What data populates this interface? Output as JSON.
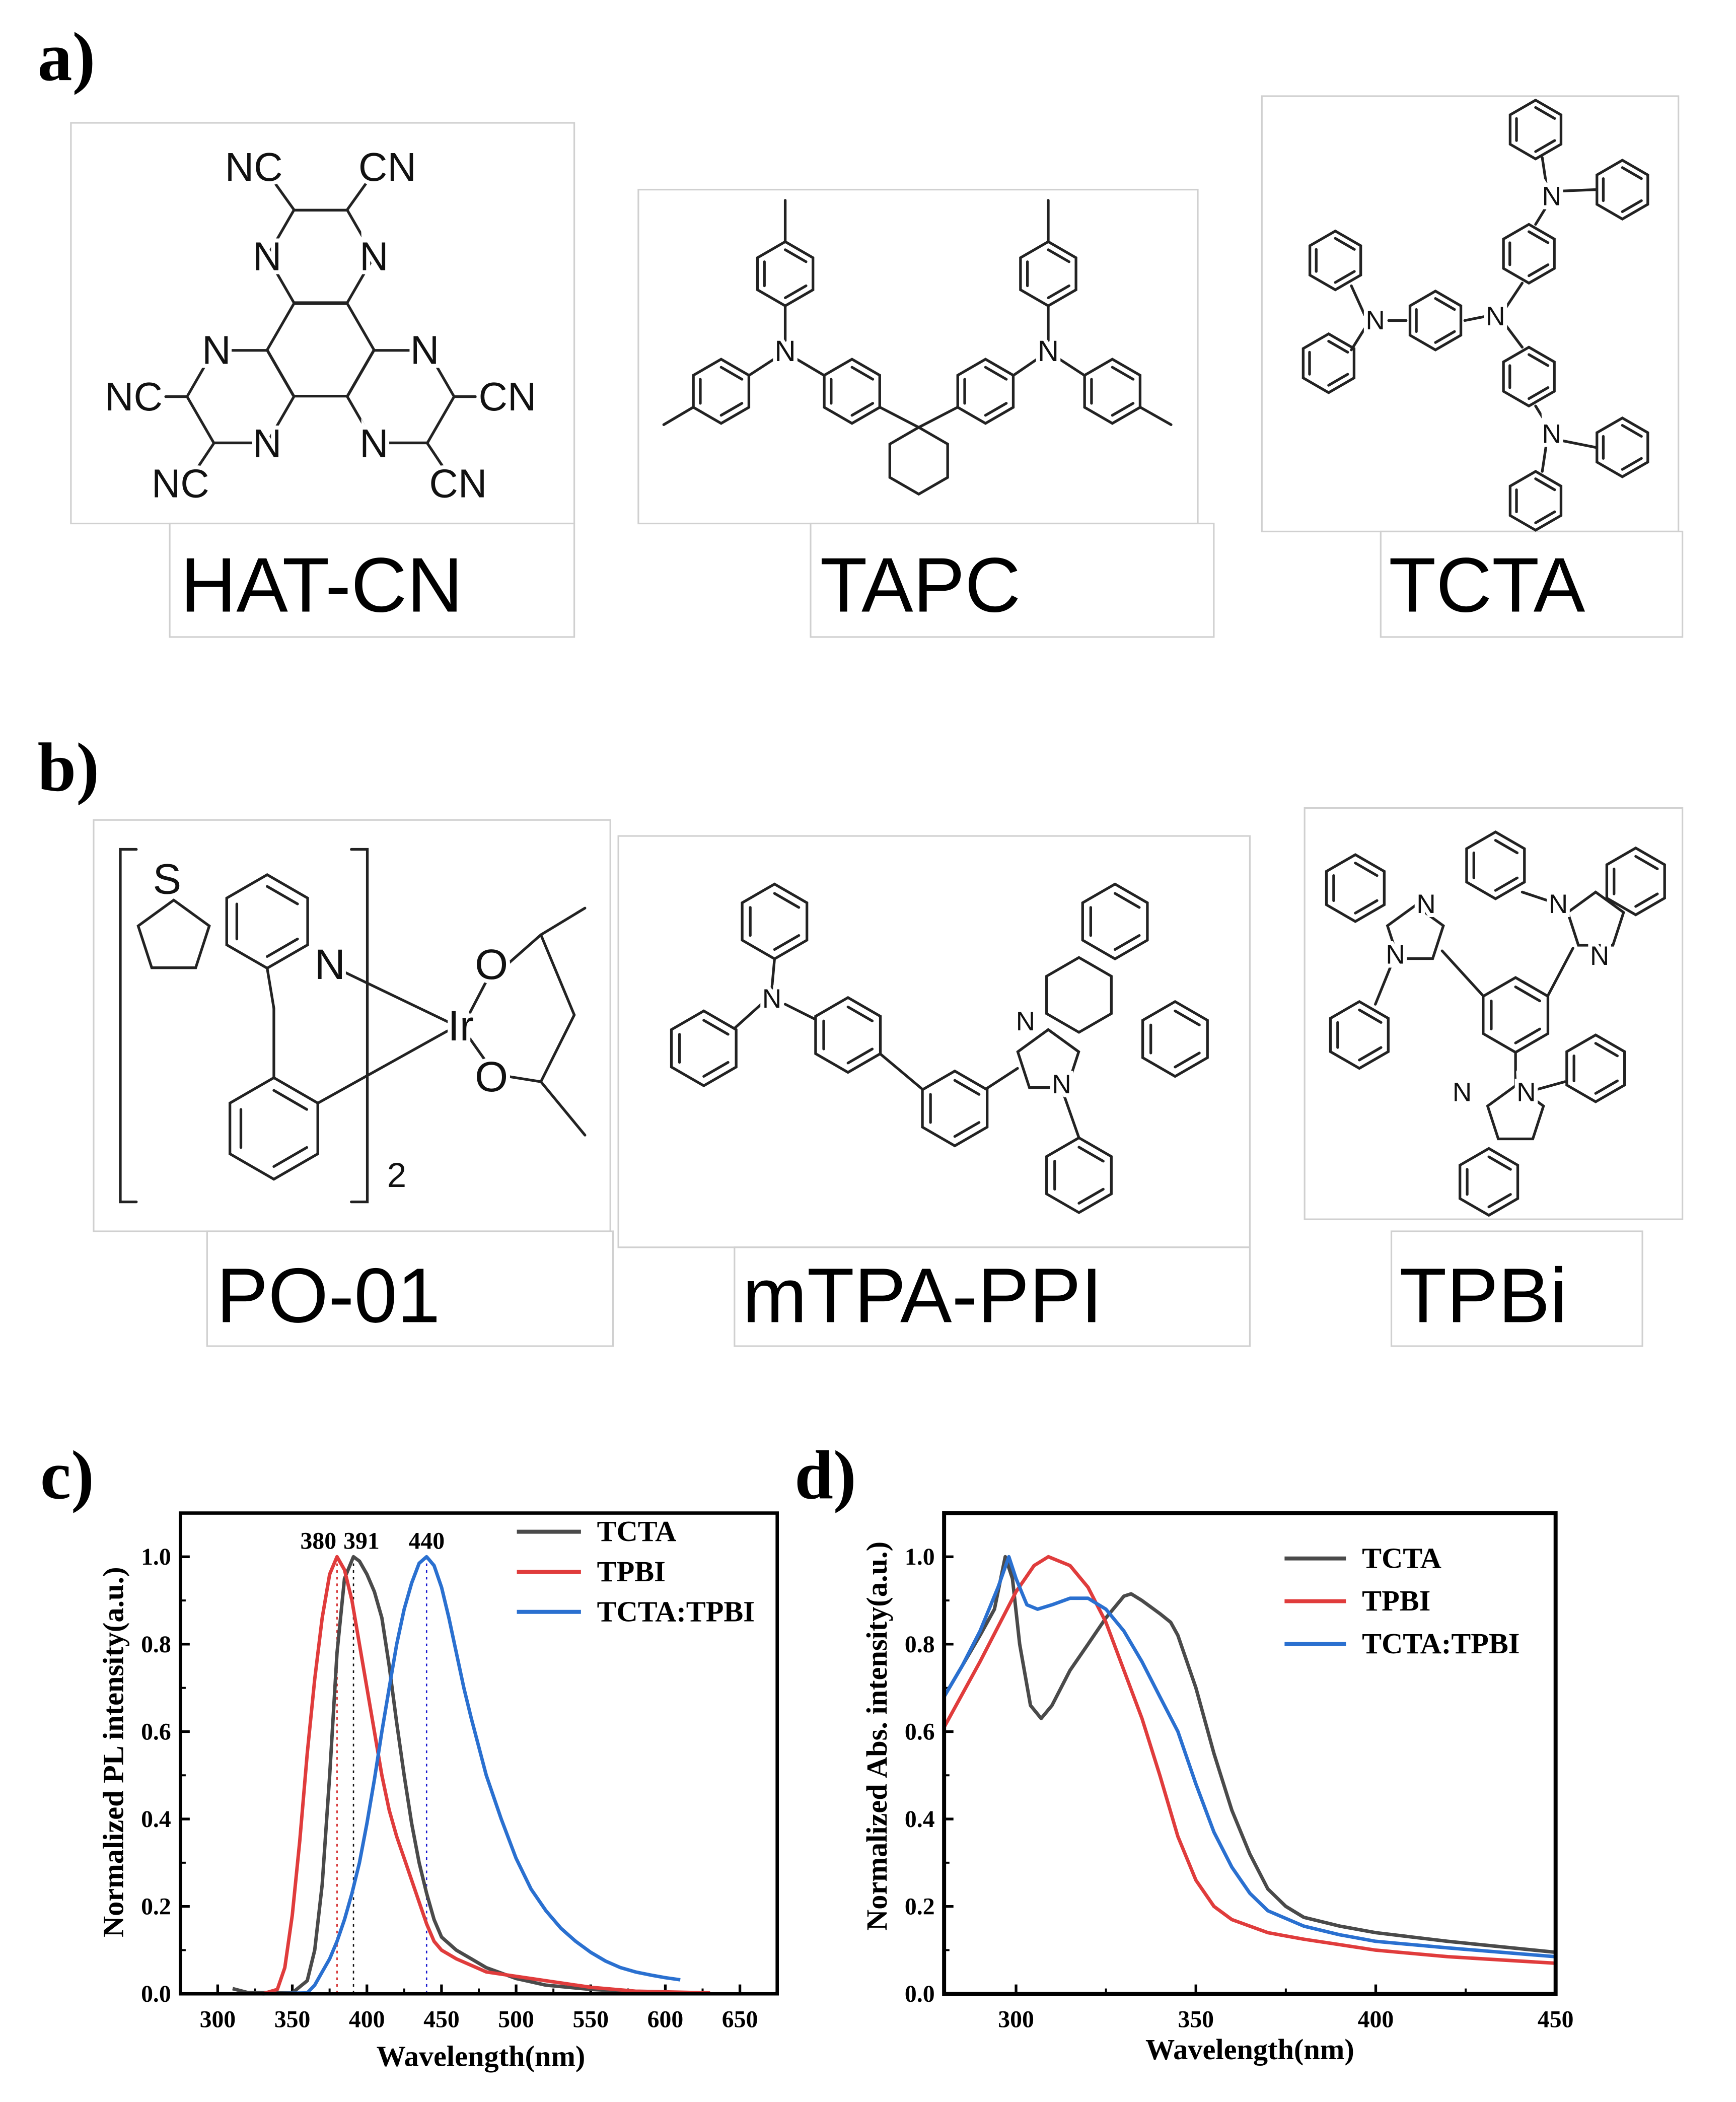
{
  "panel_labels": {
    "a": "a)",
    "b": "b)",
    "c": "c)",
    "d": "d)"
  },
  "molecules": {
    "hatcn": {
      "name": "HAT-CN",
      "atoms": [
        "N",
        "N",
        "N",
        "N",
        "N",
        "N",
        "NC",
        "CN",
        "NC",
        "NC",
        "CN",
        "CN"
      ]
    },
    "tapc": {
      "name": "TAPC",
      "atoms": [
        "N",
        "N"
      ]
    },
    "tcta": {
      "name": "TCTA",
      "atoms": [
        "N",
        "N",
        "N",
        "N"
      ]
    },
    "po01": {
      "name": "PO-01",
      "atoms": [
        "S",
        "N",
        "Ir",
        "O",
        "O",
        "2"
      ]
    },
    "mtpappi": {
      "name": "mTPA-PPI",
      "atoms": [
        "N",
        "N",
        "N"
      ]
    },
    "tpbi": {
      "name": "TPBi",
      "atoms": [
        "N",
        "N",
        "N",
        "N",
        "N",
        "N"
      ]
    }
  },
  "chart_data": [
    {
      "type": "line",
      "xlabel": "Wavelength(nm)",
      "ylabel": "Normalized PL intensity(a.u.)",
      "xlim": [
        275,
        675
      ],
      "ylim": [
        0,
        1.1
      ],
      "xticks": [
        300,
        350,
        400,
        450,
        500,
        550,
        600,
        650
      ],
      "yticks": [
        "0.0",
        "0.2",
        "0.4",
        "0.6",
        "0.8",
        "1.0"
      ],
      "grid": false,
      "legend": "top-right",
      "peak_labels": [
        {
          "text": "380",
          "x": 380,
          "color": "#d01818"
        },
        {
          "text": "391",
          "x": 391,
          "color": "#111111"
        },
        {
          "text": "440",
          "x": 440,
          "color": "#1a1ad0"
        }
      ],
      "series": [
        {
          "name": "TCTA",
          "color": "#4a4a4a",
          "x": [
            310,
            320,
            350,
            360,
            365,
            370,
            375,
            380,
            385,
            391,
            395,
            400,
            405,
            410,
            415,
            420,
            425,
            430,
            435,
            440,
            445,
            450,
            460,
            470,
            480,
            500,
            520,
            550,
            590
          ],
          "y": [
            0.012,
            0.003,
            0.002,
            0.03,
            0.1,
            0.25,
            0.5,
            0.78,
            0.95,
            1.0,
            0.99,
            0.96,
            0.92,
            0.86,
            0.75,
            0.62,
            0.5,
            0.39,
            0.3,
            0.23,
            0.17,
            0.13,
            0.1,
            0.08,
            0.06,
            0.035,
            0.02,
            0.01,
            0.003
          ]
        },
        {
          "name": "TPBI",
          "color": "#e03c3c",
          "x": [
            330,
            340,
            345,
            350,
            355,
            360,
            365,
            370,
            375,
            380,
            385,
            390,
            395,
            400,
            405,
            410,
            415,
            420,
            425,
            430,
            435,
            440,
            445,
            450,
            460,
            470,
            480,
            500,
            520,
            550,
            580,
            630
          ],
          "y": [
            0,
            0.01,
            0.06,
            0.18,
            0.35,
            0.55,
            0.72,
            0.86,
            0.96,
            1.0,
            0.97,
            0.9,
            0.8,
            0.7,
            0.6,
            0.5,
            0.42,
            0.36,
            0.31,
            0.26,
            0.21,
            0.16,
            0.12,
            0.1,
            0.08,
            0.065,
            0.05,
            0.04,
            0.03,
            0.015,
            0.006,
            0.002
          ]
        },
        {
          "name": "TCTA:TPBI",
          "color": "#2a70d0",
          "x": [
            330,
            360,
            365,
            370,
            375,
            380,
            385,
            390,
            395,
            400,
            405,
            410,
            415,
            420,
            425,
            430,
            435,
            440,
            445,
            450,
            455,
            460,
            465,
            470,
            480,
            490,
            500,
            510,
            520,
            530,
            540,
            550,
            560,
            570,
            580,
            590,
            600,
            610
          ],
          "y": [
            0,
            0.002,
            0.02,
            0.05,
            0.08,
            0.12,
            0.17,
            0.23,
            0.3,
            0.39,
            0.49,
            0.6,
            0.7,
            0.8,
            0.88,
            0.94,
            0.985,
            1.0,
            0.98,
            0.93,
            0.86,
            0.78,
            0.7,
            0.63,
            0.5,
            0.4,
            0.31,
            0.24,
            0.19,
            0.15,
            0.12,
            0.095,
            0.075,
            0.06,
            0.05,
            0.043,
            0.037,
            0.032
          ]
        }
      ]
    },
    {
      "type": "line",
      "xlabel": "Wavelength(nm)",
      "ylabel": "Normalized Abs. intensity(a.u.)",
      "xlim": [
        280,
        450
      ],
      "ylim": [
        0,
        1.1
      ],
      "xticks": [
        300,
        350,
        400,
        450
      ],
      "yticks": [
        "0.0",
        "0.2",
        "0.4",
        "0.6",
        "0.8",
        "1.0"
      ],
      "grid": false,
      "legend": "top-right",
      "series": [
        {
          "name": "TCTA",
          "color": "#4a4a4a",
          "x": [
            280,
            285,
            290,
            294,
            297,
            299,
            301,
            304,
            307,
            310,
            315,
            320,
            325,
            330,
            332,
            335,
            340,
            343,
            345,
            350,
            355,
            360,
            365,
            370,
            375,
            380,
            390,
            400,
            420,
            450
          ],
          "y": [
            0.68,
            0.75,
            0.82,
            0.88,
            1.0,
            0.95,
            0.8,
            0.66,
            0.63,
            0.66,
            0.74,
            0.8,
            0.86,
            0.91,
            0.915,
            0.9,
            0.87,
            0.85,
            0.82,
            0.7,
            0.55,
            0.42,
            0.32,
            0.24,
            0.2,
            0.175,
            0.155,
            0.14,
            0.12,
            0.095
          ]
        },
        {
          "name": "TPBI",
          "color": "#e03c3c",
          "x": [
            280,
            290,
            300,
            305,
            309,
            315,
            320,
            325,
            330,
            335,
            340,
            345,
            350,
            355,
            360,
            370,
            380,
            400,
            420,
            450
          ],
          "y": [
            0.61,
            0.76,
            0.92,
            0.98,
            1.0,
            0.98,
            0.93,
            0.85,
            0.74,
            0.63,
            0.5,
            0.36,
            0.26,
            0.2,
            0.17,
            0.14,
            0.125,
            0.1,
            0.085,
            0.07
          ]
        },
        {
          "name": "TCTA:TPBI",
          "color": "#2a70d0",
          "x": [
            280,
            285,
            290,
            295,
            298,
            300,
            303,
            306,
            310,
            315,
            320,
            325,
            330,
            335,
            340,
            345,
            350,
            355,
            360,
            365,
            370,
            380,
            390,
            400,
            420,
            450
          ],
          "y": [
            0.68,
            0.75,
            0.83,
            0.93,
            1.0,
            0.95,
            0.89,
            0.88,
            0.89,
            0.905,
            0.905,
            0.88,
            0.83,
            0.76,
            0.68,
            0.6,
            0.48,
            0.37,
            0.29,
            0.23,
            0.19,
            0.155,
            0.135,
            0.12,
            0.105,
            0.085
          ]
        }
      ]
    }
  ]
}
